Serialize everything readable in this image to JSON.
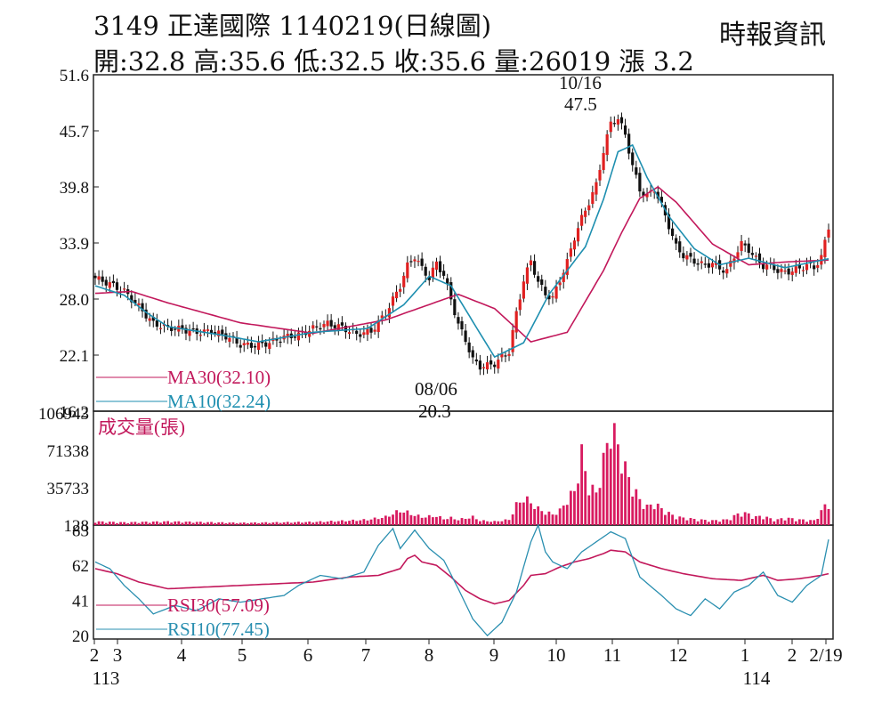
{
  "header": {
    "title": "3149  正達國際 1140219(日線圖)",
    "ohlc": "開:32.8 高:35.6 低:32.5 收:35.6 量:26019 漲 3.2",
    "source": "時報資訊"
  },
  "colors": {
    "ma30": "#c2185b",
    "ma10": "#1e8fb0",
    "up": "#e02020",
    "down": "#111111",
    "volume": "#d81b60",
    "rsi30": "#c2185b",
    "rsi10": "#2a8fb0"
  },
  "chart_data": [
    {
      "type": "candlestick",
      "panel": "price",
      "y_ticks": [
        "51.6",
        "45.7",
        "39.8",
        "33.9",
        "28.0",
        "22.1",
        "16.2"
      ],
      "ylim": [
        16.2,
        51.6
      ],
      "x_ticks": [
        "2",
        "3",
        "4",
        "5",
        "6",
        "7",
        "8",
        "9",
        "10",
        "11",
        "12",
        "1",
        "2",
        "2/19"
      ],
      "x_year_labels": [
        "113",
        "114"
      ],
      "annotations": [
        {
          "date": "10/16",
          "value": "47.5",
          "text_date": "10/16",
          "text_value": "47.5"
        },
        {
          "date": "08/06",
          "value": "20.3",
          "text_date": "08/06",
          "text_value": "20.3"
        }
      ],
      "legend": [
        {
          "name": "MA30(32.10)",
          "color": "#c2185b"
        },
        {
          "name": "MA10(32.24)",
          "color": "#1e8fb0"
        }
      ],
      "close_path": [
        [
          0,
          30.2
        ],
        [
          4,
          29.6
        ],
        [
          8,
          28.8
        ],
        [
          12,
          27.2
        ],
        [
          16,
          25.4
        ],
        [
          20,
          25.0
        ],
        [
          24,
          24.8
        ],
        [
          28,
          24.5
        ],
        [
          32,
          24.6
        ],
        [
          36,
          24.1
        ],
        [
          40,
          23.2
        ],
        [
          44,
          23.1
        ],
        [
          48,
          23.4
        ],
        [
          52,
          24.0
        ],
        [
          56,
          24.2
        ],
        [
          60,
          24.9
        ],
        [
          64,
          25.4
        ],
        [
          68,
          25.0
        ],
        [
          72,
          24.3
        ],
        [
          76,
          24.6
        ],
        [
          80,
          26.5
        ],
        [
          84,
          29.4
        ],
        [
          86,
          31.5
        ],
        [
          88,
          32.5
        ],
        [
          90,
          31.2
        ],
        [
          92,
          30.2
        ],
        [
          94,
          31.8
        ],
        [
          96,
          30.5
        ],
        [
          98,
          28.0
        ],
        [
          100,
          25.3
        ],
        [
          102,
          23.7
        ],
        [
          104,
          21.6
        ],
        [
          106,
          20.9
        ],
        [
          108,
          21.0
        ],
        [
          110,
          21.2
        ],
        [
          112,
          21.9
        ],
        [
          114,
          22.5
        ],
        [
          116,
          26.5
        ],
        [
          118,
          30.0
        ],
        [
          120,
          32.0
        ],
        [
          122,
          29.8
        ],
        [
          124,
          28.5
        ],
        [
          126,
          28.1
        ],
        [
          128,
          30.0
        ],
        [
          130,
          31.9
        ],
        [
          132,
          34.5
        ],
        [
          134,
          36.5
        ],
        [
          136,
          38.2
        ],
        [
          138,
          40.0
        ],
        [
          140,
          43.6
        ],
        [
          142,
          46.5
        ],
        [
          144,
          47.0
        ],
        [
          146,
          45.3
        ],
        [
          148,
          42.0
        ],
        [
          150,
          39.5
        ],
        [
          152,
          38.8
        ],
        [
          154,
          39.6
        ],
        [
          156,
          37.8
        ],
        [
          158,
          35.7
        ],
        [
          160,
          33.5
        ],
        [
          162,
          32.6
        ],
        [
          164,
          32.2
        ],
        [
          166,
          31.8
        ],
        [
          168,
          31.5
        ],
        [
          170,
          31.8
        ],
        [
          172,
          31.2
        ],
        [
          174,
          31.0
        ],
        [
          176,
          32.5
        ],
        [
          178,
          33.8
        ],
        [
          180,
          33.2
        ],
        [
          182,
          32.2
        ],
        [
          184,
          31.5
        ],
        [
          186,
          31.5
        ],
        [
          188,
          31.0
        ],
        [
          190,
          30.8
        ],
        [
          192,
          31.0
        ],
        [
          194,
          31.2
        ],
        [
          196,
          31.6
        ],
        [
          198,
          31.3
        ],
        [
          200,
          32.4
        ],
        [
          202,
          35.6
        ]
      ],
      "ma30_path": [
        [
          0,
          28.6
        ],
        [
          10,
          28.8
        ],
        [
          20,
          27.6
        ],
        [
          40,
          25.5
        ],
        [
          60,
          24.4
        ],
        [
          80,
          25.8
        ],
        [
          100,
          28.5
        ],
        [
          110,
          27.0
        ],
        [
          120,
          23.5
        ],
        [
          130,
          24.5
        ],
        [
          140,
          31.0
        ],
        [
          145,
          35.0
        ],
        [
          150,
          38.6
        ],
        [
          155,
          39.8
        ],
        [
          160,
          38.2
        ],
        [
          170,
          33.8
        ],
        [
          180,
          31.6
        ],
        [
          190,
          31.9
        ],
        [
          202,
          32.1
        ]
      ],
      "ma10_path": [
        [
          0,
          29.4
        ],
        [
          8,
          28.4
        ],
        [
          14,
          26.6
        ],
        [
          20,
          25.1
        ],
        [
          35,
          24.2
        ],
        [
          45,
          23.5
        ],
        [
          60,
          24.5
        ],
        [
          75,
          24.9
        ],
        [
          85,
          27.4
        ],
        [
          92,
          30.4
        ],
        [
          98,
          29.4
        ],
        [
          105,
          25.0
        ],
        [
          110,
          21.9
        ],
        [
          118,
          23.4
        ],
        [
          125,
          28.5
        ],
        [
          135,
          33.5
        ],
        [
          140,
          38.5
        ],
        [
          144,
          43.5
        ],
        [
          148,
          44.2
        ],
        [
          152,
          40.8
        ],
        [
          158,
          36.7
        ],
        [
          165,
          33.3
        ],
        [
          172,
          31.6
        ],
        [
          180,
          32.3
        ],
        [
          190,
          31.3
        ],
        [
          202,
          32.24
        ]
      ]
    },
    {
      "type": "bar",
      "panel": "volume",
      "title": "成交量(張)",
      "y_ticks": [
        "106943",
        "71338",
        "35733",
        "128"
      ],
      "ylim": [
        0,
        106943
      ],
      "spikes": [
        [
          0,
          4000
        ],
        [
          8,
          3000
        ],
        [
          20,
          4000
        ],
        [
          40,
          2500
        ],
        [
          60,
          3500
        ],
        [
          70,
          5000
        ],
        [
          75,
          6000
        ],
        [
          80,
          9000
        ],
        [
          84,
          16000
        ],
        [
          86,
          14000
        ],
        [
          88,
          11000
        ],
        [
          90,
          9000
        ],
        [
          94,
          10000
        ],
        [
          96,
          7000
        ],
        [
          98,
          8000
        ],
        [
          100,
          6000
        ],
        [
          104,
          9000
        ],
        [
          106,
          5000
        ],
        [
          110,
          4000
        ],
        [
          114,
          6000
        ],
        [
          116,
          22000
        ],
        [
          118,
          30000
        ],
        [
          120,
          25000
        ],
        [
          122,
          18000
        ],
        [
          124,
          14000
        ],
        [
          126,
          12000
        ],
        [
          128,
          16000
        ],
        [
          130,
          28000
        ],
        [
          132,
          38000
        ],
        [
          134,
          78000
        ],
        [
          136,
          42000
        ],
        [
          138,
          36000
        ],
        [
          140,
          70000
        ],
        [
          142,
          110000
        ],
        [
          144,
          88000
        ],
        [
          146,
          62000
        ],
        [
          148,
          42000
        ],
        [
          150,
          28000
        ],
        [
          152,
          20000
        ],
        [
          154,
          24000
        ],
        [
          156,
          18000
        ],
        [
          158,
          13000
        ],
        [
          160,
          9000
        ],
        [
          162,
          8000
        ],
        [
          164,
          7000
        ],
        [
          166,
          6000
        ],
        [
          170,
          5000
        ],
        [
          174,
          6000
        ],
        [
          178,
          14000
        ],
        [
          180,
          12000
        ],
        [
          182,
          9000
        ],
        [
          184,
          10000
        ],
        [
          186,
          7000
        ],
        [
          188,
          6000
        ],
        [
          190,
          8000
        ],
        [
          194,
          6000
        ],
        [
          198,
          5000
        ],
        [
          202,
          26000
        ]
      ]
    },
    {
      "type": "line",
      "panel": "rsi",
      "y_ticks": [
        "83",
        "62",
        "41",
        "20"
      ],
      "ylim": [
        18,
        86
      ],
      "legend": [
        {
          "name": "RSI30(57.09)",
          "color": "#c2185b"
        },
        {
          "name": "RSI10(77.45)",
          "color": "#2a8fb0"
        }
      ],
      "rsi30_path": [
        [
          0,
          60
        ],
        [
          6,
          57
        ],
        [
          12,
          52
        ],
        [
          20,
          48
        ],
        [
          30,
          49
        ],
        [
          40,
          50
        ],
        [
          50,
          51
        ],
        [
          60,
          52
        ],
        [
          70,
          55
        ],
        [
          78,
          56
        ],
        [
          84,
          60
        ],
        [
          86,
          66
        ],
        [
          88,
          68
        ],
        [
          90,
          64
        ],
        [
          94,
          62
        ],
        [
          98,
          55
        ],
        [
          102,
          47
        ],
        [
          106,
          42
        ],
        [
          110,
          39
        ],
        [
          114,
          41
        ],
        [
          118,
          50
        ],
        [
          120,
          56
        ],
        [
          124,
          57
        ],
        [
          128,
          61
        ],
        [
          132,
          64
        ],
        [
          136,
          66
        ],
        [
          140,
          69
        ],
        [
          142,
          71
        ],
        [
          146,
          70
        ],
        [
          150,
          64
        ],
        [
          156,
          60
        ],
        [
          162,
          57
        ],
        [
          170,
          54
        ],
        [
          178,
          53
        ],
        [
          184,
          56
        ],
        [
          188,
          53
        ],
        [
          194,
          54
        ],
        [
          200,
          56
        ],
        [
          202,
          57
        ]
      ],
      "rsi10_path": [
        [
          0,
          64
        ],
        [
          4,
          60
        ],
        [
          8,
          50
        ],
        [
          12,
          42
        ],
        [
          16,
          33
        ],
        [
          22,
          38
        ],
        [
          28,
          35
        ],
        [
          34,
          42
        ],
        [
          40,
          40
        ],
        [
          46,
          42
        ],
        [
          52,
          44
        ],
        [
          56,
          50
        ],
        [
          62,
          56
        ],
        [
          68,
          54
        ],
        [
          74,
          58
        ],
        [
          78,
          74
        ],
        [
          82,
          84
        ],
        [
          84,
          72
        ],
        [
          88,
          83
        ],
        [
          92,
          72
        ],
        [
          96,
          65
        ],
        [
          100,
          48
        ],
        [
          104,
          30
        ],
        [
          108,
          20
        ],
        [
          112,
          28
        ],
        [
          116,
          46
        ],
        [
          120,
          76
        ],
        [
          122,
          86
        ],
        [
          124,
          70
        ],
        [
          126,
          64
        ],
        [
          130,
          60
        ],
        [
          134,
          70
        ],
        [
          138,
          76
        ],
        [
          142,
          82
        ],
        [
          146,
          78
        ],
        [
          150,
          55
        ],
        [
          156,
          44
        ],
        [
          160,
          36
        ],
        [
          164,
          32
        ],
        [
          168,
          42
        ],
        [
          172,
          36
        ],
        [
          176,
          46
        ],
        [
          180,
          50
        ],
        [
          184,
          58
        ],
        [
          188,
          44
        ],
        [
          192,
          40
        ],
        [
          196,
          50
        ],
        [
          200,
          56
        ],
        [
          202,
          77.45
        ]
      ]
    }
  ]
}
